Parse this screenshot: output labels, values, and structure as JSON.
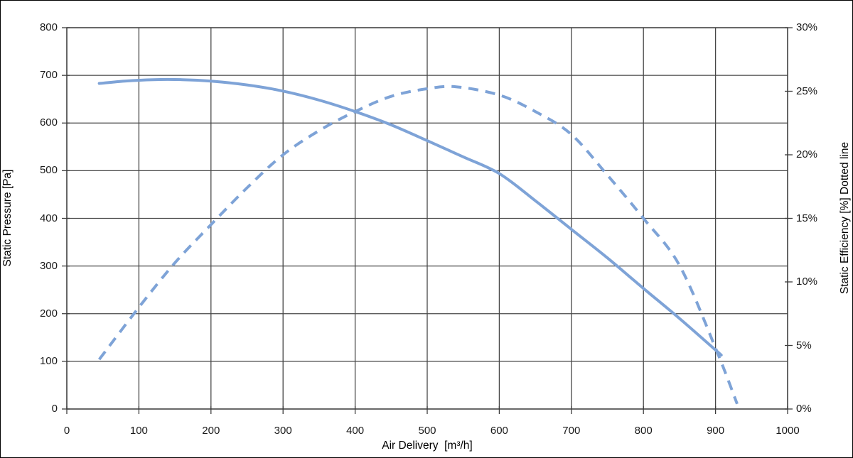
{
  "chart_data": {
    "type": "line",
    "title": "",
    "xlabel": "Air Delivery  [m³/h]",
    "ylabel_left": "Static Pressure [Pa]",
    "ylabel_right": "Static Efficiency [%] Dotted line",
    "grid": true,
    "legend": "none",
    "x_axis": {
      "min": 0,
      "max": 1000,
      "step": 100,
      "tick_labels": [
        "0",
        "100",
        "200",
        "300",
        "400",
        "500",
        "600",
        "700",
        "800",
        "900",
        "1000"
      ]
    },
    "y_left_axis": {
      "min": 0,
      "max": 800,
      "step": 100,
      "tick_labels": [
        "0",
        "100",
        "200",
        "300",
        "400",
        "500",
        "600",
        "700",
        "800"
      ]
    },
    "y_right_axis": {
      "min": 0,
      "max": 30,
      "step": 5,
      "tick_labels": [
        "0%",
        "5%",
        "10%",
        "15%",
        "20%",
        "25%",
        "30%"
      ]
    },
    "series": [
      {
        "name": "Static Pressure",
        "axis": "left",
        "style": "solid",
        "points": [
          [
            45,
            683
          ],
          [
            80,
            688
          ],
          [
            120,
            691
          ],
          [
            160,
            691
          ],
          [
            200,
            688
          ],
          [
            250,
            680
          ],
          [
            300,
            667
          ],
          [
            350,
            648
          ],
          [
            400,
            624
          ],
          [
            450,
            596
          ],
          [
            500,
            563
          ],
          [
            550,
            529
          ],
          [
            600,
            494
          ],
          [
            650,
            437
          ],
          [
            700,
            377
          ],
          [
            750,
            317
          ],
          [
            800,
            253
          ],
          [
            850,
            190
          ],
          [
            908,
            113
          ]
        ]
      },
      {
        "name": "Static Efficiency",
        "axis": "right",
        "style": "dashed",
        "points": [
          [
            45,
            3.9
          ],
          [
            100,
            8.0
          ],
          [
            150,
            11.5
          ],
          [
            200,
            14.5
          ],
          [
            250,
            17.4
          ],
          [
            300,
            20.0
          ],
          [
            350,
            21.9
          ],
          [
            400,
            23.4
          ],
          [
            450,
            24.6
          ],
          [
            500,
            25.2
          ],
          [
            540,
            25.35
          ],
          [
            600,
            24.7
          ],
          [
            650,
            23.4
          ],
          [
            700,
            21.6
          ],
          [
            750,
            18.4
          ],
          [
            800,
            15.0
          ],
          [
            850,
            11.3
          ],
          [
            900,
            4.8
          ],
          [
            930,
            0.4
          ]
        ]
      }
    ],
    "colors": {
      "line": "#7EA3D7",
      "grid": "#474747",
      "frame": "#3d3d3d",
      "text": "#1a1a1a"
    }
  }
}
